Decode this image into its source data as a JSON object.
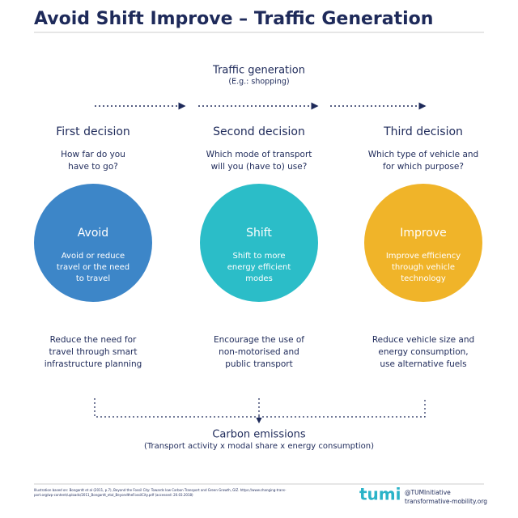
{
  "header": {
    "title": "Avoid Shift Improve – Traffic Generation"
  },
  "top": {
    "title": "Traffic generation",
    "subtitle": "(E.g.: shopping)"
  },
  "columns": [
    {
      "decision": "First decision",
      "question": [
        "How far do you",
        "have to go?"
      ],
      "circle_title": "Avoid",
      "circle_text": [
        "Avoid or reduce",
        "travel or the need",
        "to travel"
      ],
      "result": [
        "Reduce the need for",
        "travel through smart",
        "infrastructure planning"
      ]
    },
    {
      "decision": "Second decision",
      "question": [
        "Which mode of transport",
        "will you (have to) use?"
      ],
      "circle_title": "Shift",
      "circle_text": [
        "Shift to more",
        "energy efficient",
        "modes"
      ],
      "result": [
        "Encourage the use of",
        "non-motorised and",
        "public transport"
      ]
    },
    {
      "decision": "Third decision",
      "question": [
        "Which type of vehicle and",
        "for which purpose?"
      ],
      "circle_title": "Improve",
      "circle_text": [
        "Improve efficiency",
        "through vehicle",
        "technology"
      ],
      "result": [
        "Reduce vehicle size and",
        "energy consumption,",
        "use alternative fuels"
      ]
    }
  ],
  "bottom": {
    "title": "Carbon emissions",
    "subtitle": "(Transport activity x modal share x energy consumption)"
  },
  "footer": {
    "source": [
      "Illustration based on: Bongardt et al (2011, p.7), Beyond the Fossil City: Towards low Carbon Transport and Green Growth, GIZ. https://www.changing-trans-",
      "port.org/wp-content/uploads/2011_Bongardt_etal_BeyondtheFossilCity.pdf (accessed: 20.03.2018)"
    ],
    "logo": "tumi",
    "handle": "@TUMInitiative",
    "website": "transformative-mobility.org"
  }
}
